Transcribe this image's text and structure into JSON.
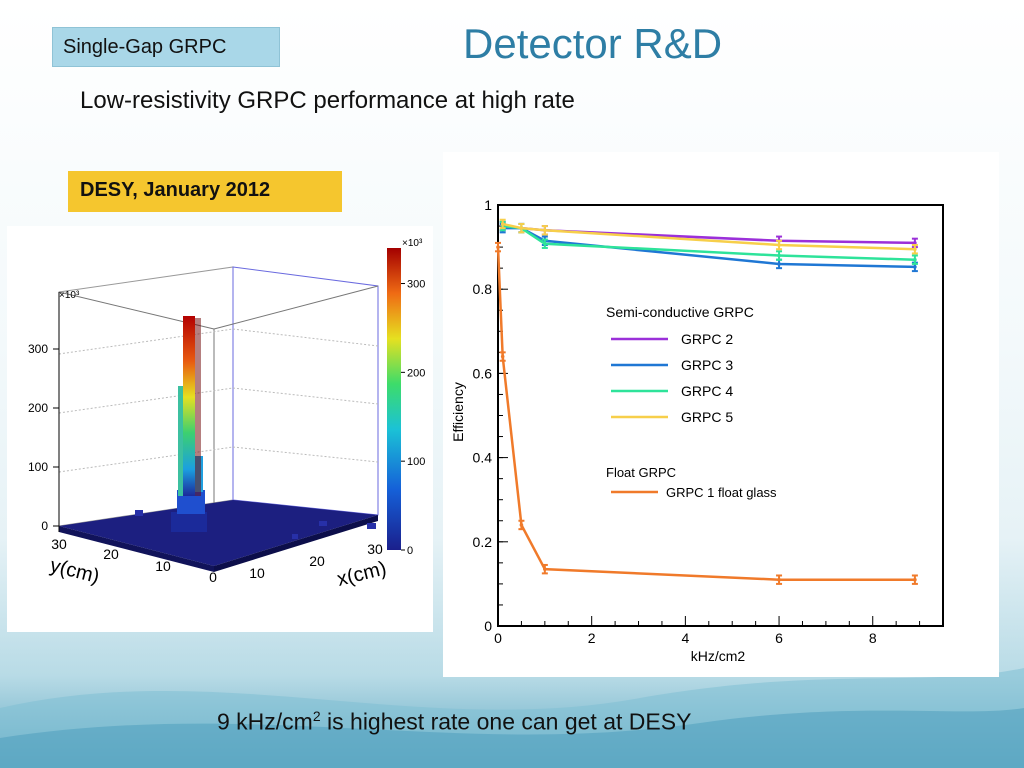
{
  "header": {
    "tag_label": "Single-Gap GRPC",
    "title": "Detector R&D",
    "subtitle": "Low-resistivity GRPC performance at high rate"
  },
  "badge": {
    "label": "DESY, January 2012"
  },
  "footer": {
    "text_before": "9 kHz/cm",
    "sup": "2",
    "text_after": " is highest rate one can get at DESY"
  },
  "colors": {
    "title": "#2e7ea5",
    "tag_bg": "#a9d7e8",
    "badge_bg": "#f5c62e",
    "grpc2": "#9b30d9",
    "grpc3": "#1f77d4",
    "grpc4": "#2ee39a",
    "grpc5": "#f7cf4a",
    "float": "#f07a2a"
  },
  "chart_data": [
    {
      "type": "lego3d",
      "title": "",
      "xlabel": "x(cm)",
      "ylabel": "y(cm)",
      "z_multiplier_label": "×10³",
      "colorbar_multiplier_label": "×10³",
      "x_ticks": [
        "0",
        "10",
        "20",
        "30"
      ],
      "y_ticks": [
        "30",
        "20",
        "10",
        "0"
      ],
      "z_ticks": [
        "0",
        "100",
        "200",
        "300"
      ],
      "colorbar_ticks": [
        "0",
        "100",
        "200",
        "300"
      ],
      "peak_value_x1000": 340,
      "note": ""
    },
    {
      "type": "line",
      "title": "",
      "xlabel": "kHz/cm2",
      "ylabel": "Efficiency",
      "xlim": [
        0,
        9.5
      ],
      "ylim": [
        0,
        1
      ],
      "x_ticks": [
        0,
        2,
        4,
        6,
        8
      ],
      "y_ticks": [
        0,
        0.2,
        0.4,
        0.6,
        0.8,
        1
      ],
      "y_tick_labels": [
        "0",
        "0.2",
        "0.4",
        "0.6",
        "0.8",
        "1"
      ],
      "legend": {
        "placement": "center-right",
        "group1": "Semi-conductive GRPC",
        "group2": "Float GRPC"
      },
      "series": [
        {
          "name": "GRPC 2",
          "legend_group": 1,
          "color": "#9b30d9",
          "x": [
            0.1,
            0.5,
            1.0,
            6.0,
            8.9
          ],
          "y": [
            0.95,
            0.945,
            0.94,
            0.915,
            0.91
          ],
          "err": [
            0.01,
            0.01,
            0.01,
            0.01,
            0.01
          ]
        },
        {
          "name": "GRPC 3",
          "legend_group": 1,
          "color": "#1f77d4",
          "x": [
            0.1,
            0.5,
            1.0,
            6.0,
            8.9
          ],
          "y": [
            0.945,
            0.945,
            0.915,
            0.86,
            0.853
          ],
          "err": [
            0.01,
            0.01,
            0.01,
            0.01,
            0.01
          ]
        },
        {
          "name": "GRPC 4",
          "legend_group": 1,
          "color": "#2ee39a",
          "x": [
            0.1,
            0.5,
            1.0,
            6.0,
            8.9
          ],
          "y": [
            0.95,
            0.945,
            0.908,
            0.88,
            0.87
          ],
          "err": [
            0.01,
            0.01,
            0.01,
            0.01,
            0.01
          ]
        },
        {
          "name": "GRPC 5",
          "legend_group": 1,
          "color": "#f7cf4a",
          "x": [
            0.1,
            0.5,
            1.0,
            6.0,
            8.9
          ],
          "y": [
            0.955,
            0.945,
            0.94,
            0.905,
            0.895
          ],
          "err": [
            0.01,
            0.01,
            0.01,
            0.01,
            0.01
          ]
        },
        {
          "name": "GRPC 1 float glass",
          "legend_group": 2,
          "color": "#f07a2a",
          "x": [
            0.0,
            0.1,
            0.5,
            1.0,
            6.0,
            8.9
          ],
          "y": [
            0.9,
            0.64,
            0.24,
            0.135,
            0.11,
            0.11
          ],
          "err": [
            0.01,
            0.01,
            0.01,
            0.01,
            0.01,
            0.01
          ]
        }
      ]
    }
  ]
}
